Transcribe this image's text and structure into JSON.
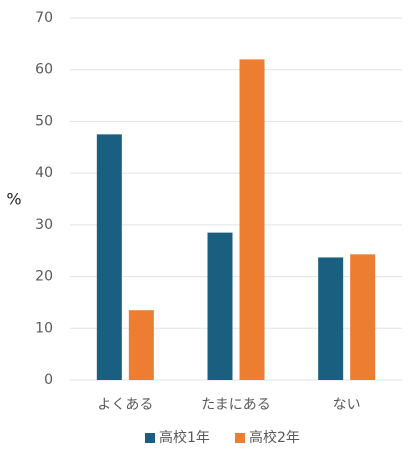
{
  "chart_data": {
    "type": "bar",
    "y_label": "%",
    "categories": [
      "よくある",
      "たまにある",
      "ない"
    ],
    "series": [
      {
        "name": "高校1年",
        "color": "#1b5f80",
        "values": [
          47.5,
          28.5,
          23.7
        ]
      },
      {
        "name": "高校2年",
        "color": "#ed7d31",
        "values": [
          13.5,
          62,
          24.3
        ]
      }
    ],
    "ylim": [
      0,
      70
    ],
    "yticks": [
      0,
      10,
      20,
      30,
      40,
      50,
      60,
      70
    ],
    "grid": true,
    "legend": "bottom"
  }
}
